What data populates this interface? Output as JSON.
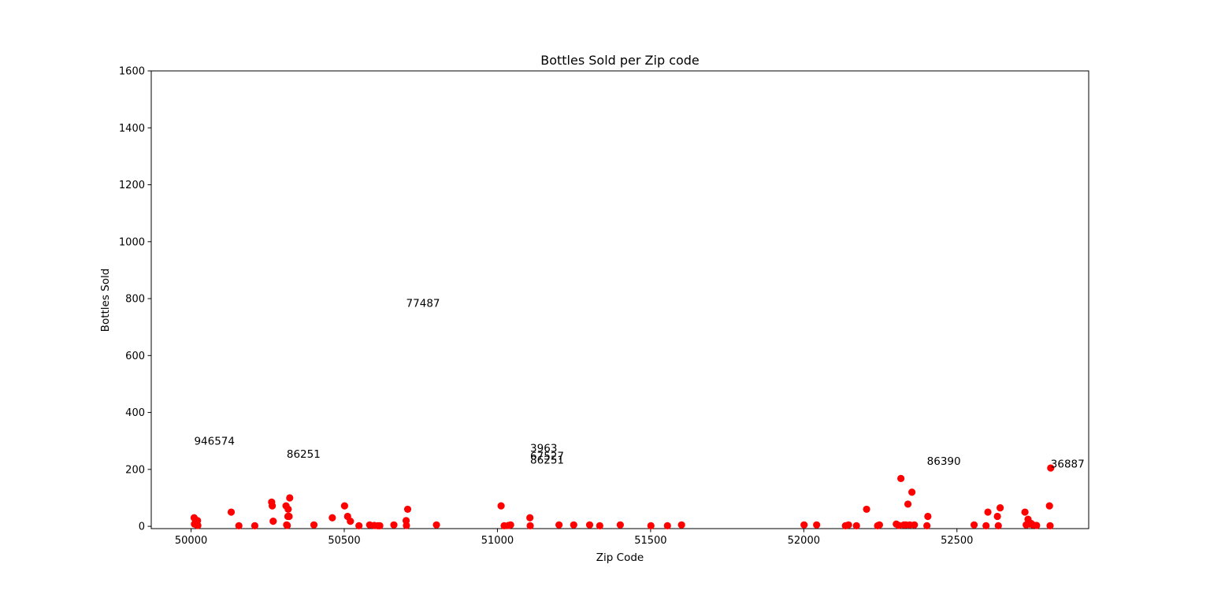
{
  "chart_data": {
    "type": "scatter",
    "title": "Bottles Sold per Zip code",
    "xlabel": "Zip Code",
    "ylabel": "Bottles Sold",
    "xlim": [
      49870,
      52930
    ],
    "ylim": [
      -8,
      1600
    ],
    "xticks": [
      50000,
      50500,
      51000,
      51500,
      52000,
      52500
    ],
    "yticks": [
      0,
      200,
      400,
      600,
      800,
      1000,
      1200,
      1400,
      1600
    ],
    "grid": false,
    "marker_color": "#ff0000",
    "points": [
      [
        50010,
        30
      ],
      [
        50011,
        8
      ],
      [
        50015,
        18
      ],
      [
        50018,
        5
      ],
      [
        50021,
        20
      ],
      [
        50022,
        3
      ],
      [
        50131,
        50
      ],
      [
        50156,
        2
      ],
      [
        50208,
        2
      ],
      [
        50263,
        85
      ],
      [
        50265,
        72
      ],
      [
        50268,
        18
      ],
      [
        50310,
        72
      ],
      [
        50312,
        5
      ],
      [
        50314,
        3
      ],
      [
        50316,
        35
      ],
      [
        50317,
        60
      ],
      [
        50320,
        35
      ],
      [
        50322,
        100
      ],
      [
        50401,
        5
      ],
      [
        50461,
        30
      ],
      [
        50501,
        72
      ],
      [
        50511,
        35
      ],
      [
        50520,
        18
      ],
      [
        50548,
        2
      ],
      [
        50583,
        5
      ],
      [
        50598,
        3
      ],
      [
        50610,
        2
      ],
      [
        50616,
        2
      ],
      [
        50662,
        5
      ],
      [
        50702,
        20
      ],
      [
        50703,
        3
      ],
      [
        50707,
        60
      ],
      [
        50801,
        5
      ],
      [
        51012,
        72
      ],
      [
        51022,
        2
      ],
      [
        51036,
        3
      ],
      [
        51043,
        5
      ],
      [
        51106,
        30
      ],
      [
        51107,
        2
      ],
      [
        51201,
        5
      ],
      [
        51249,
        5
      ],
      [
        51301,
        5
      ],
      [
        51334,
        2
      ],
      [
        51401,
        5
      ],
      [
        51501,
        2
      ],
      [
        51555,
        2
      ],
      [
        51601,
        5
      ],
      [
        52001,
        5
      ],
      [
        52042,
        5
      ],
      [
        52136,
        2
      ],
      [
        52146,
        5
      ],
      [
        52172,
        2
      ],
      [
        52205,
        60
      ],
      [
        52241,
        2
      ],
      [
        52247,
        5
      ],
      [
        52302,
        8
      ],
      [
        52310,
        3
      ],
      [
        52317,
        168
      ],
      [
        52327,
        5
      ],
      [
        52333,
        5
      ],
      [
        52340,
        78
      ],
      [
        52346,
        5
      ],
      [
        52353,
        120
      ],
      [
        52361,
        5
      ],
      [
        52402,
        2
      ],
      [
        52405,
        35
      ],
      [
        52556,
        5
      ],
      [
        52595,
        2
      ],
      [
        52601,
        50
      ],
      [
        52632,
        35
      ],
      [
        52635,
        2
      ],
      [
        52641,
        65
      ],
      [
        52722,
        50
      ],
      [
        52726,
        5
      ],
      [
        52732,
        25
      ],
      [
        52738,
        8
      ],
      [
        52742,
        10
      ],
      [
        52748,
        5
      ],
      [
        52760,
        3
      ],
      [
        52802,
        72
      ],
      [
        52804,
        2
      ],
      [
        52806,
        205
      ]
    ],
    "annotations": [
      {
        "text": "946574",
        "x": 50010,
        "y": 300
      },
      {
        "text": "86251",
        "x": 50312,
        "y": 255
      },
      {
        "text": "77487",
        "x": 50702,
        "y": 785
      },
      {
        "text": "3963",
        "x": 51107,
        "y": 275
      },
      {
        "text": "67527",
        "x": 51107,
        "y": 248
      },
      {
        "text": "86251",
        "x": 51107,
        "y": 234
      },
      {
        "text": "86390",
        "x": 52402,
        "y": 230
      },
      {
        "text": "36887",
        "x": 52806,
        "y": 220
      }
    ]
  }
}
